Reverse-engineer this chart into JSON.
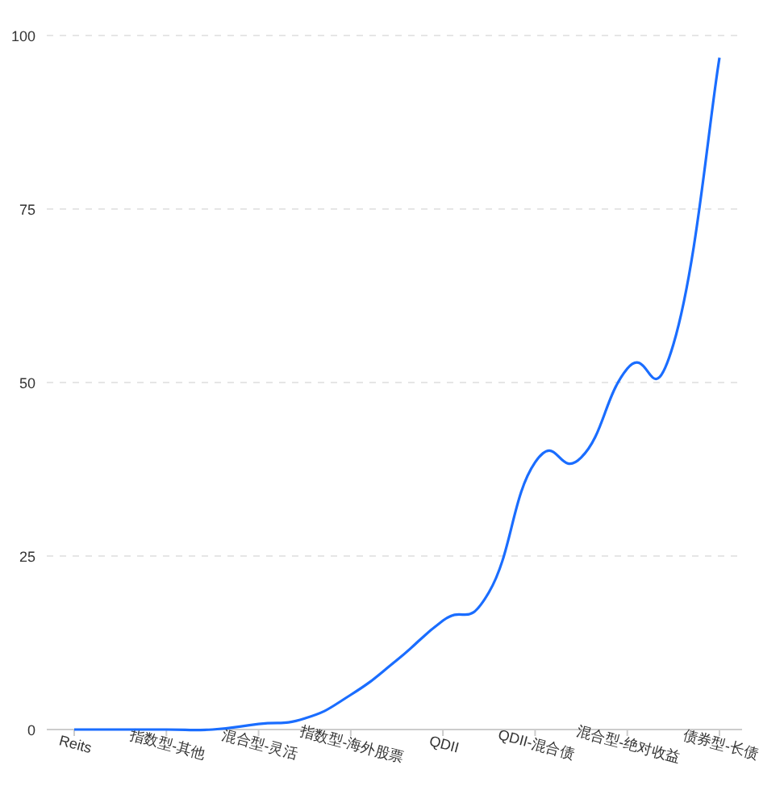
{
  "chart_data": {
    "type": "line",
    "categories": [
      "Reits",
      null,
      "指数型-其他",
      null,
      "混合型-灵活",
      null,
      "指数型-海外股票",
      null,
      "QDII",
      null,
      "QDII-混合债",
      null,
      "混合型-绝对收益",
      null,
      "债券型-长债"
    ],
    "values": [
      0,
      0,
      0,
      0,
      0.8,
      1.6,
      5,
      10,
      15.7,
      19.8,
      38.5,
      39.2,
      52,
      55.5,
      96.8
    ],
    "color": "#1a6dff",
    "ylim": [
      0,
      100
    ],
    "yticks": [
      0,
      25,
      50,
      75,
      100
    ],
    "grid": "y"
  }
}
